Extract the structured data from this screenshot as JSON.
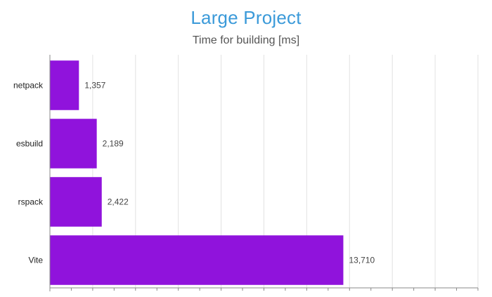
{
  "chart_data": {
    "type": "bar",
    "orientation": "horizontal",
    "title": "Large Project",
    "subtitle": "Time for building [ms]",
    "categories": [
      "netpack",
      "esbuild",
      "rspack",
      "Vite"
    ],
    "values": [
      1357,
      2189,
      2422,
      13710
    ],
    "value_labels": [
      "1,357",
      "2,189",
      "2,422",
      "13,710"
    ],
    "xlim": [
      0,
      20000
    ],
    "grid": true,
    "legend": "none"
  },
  "colors": {
    "title": "#3b9ad9",
    "subtitle": "#555555",
    "bar": "#9013dc",
    "gridline": "#e2e2e2",
    "axis": "#888888"
  }
}
